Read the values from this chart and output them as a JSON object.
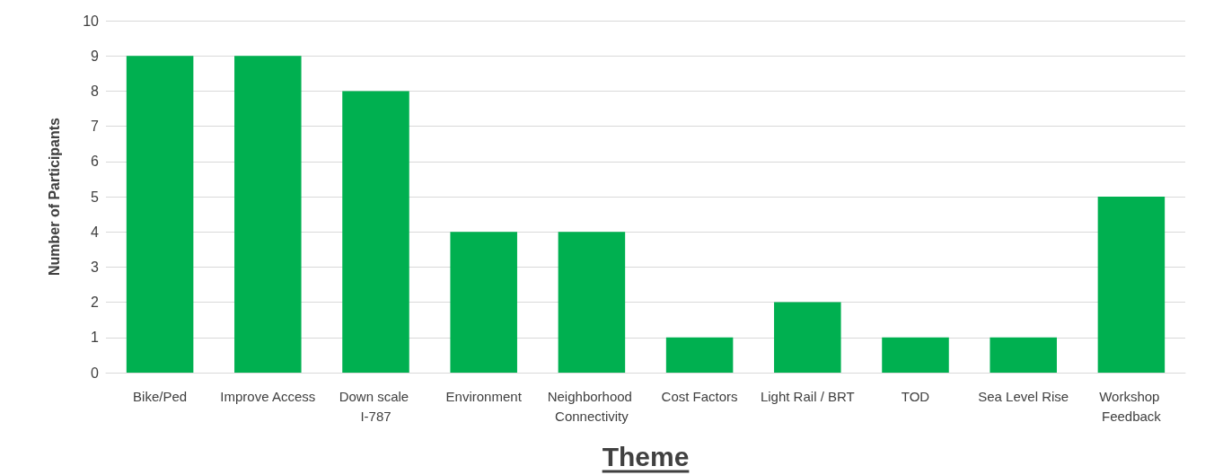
{
  "chart_data": {
    "type": "bar",
    "xlabel": "Theme",
    "ylabel": "Number of Participants",
    "categories": [
      "Bike/Ped",
      "Improve Access",
      "Down scale I-787",
      "Environment",
      "Neighborhood Connectivity",
      "Cost Factors",
      "Light Rail / BRT",
      "TOD",
      "Sea Level Rise",
      "Workshop Feedback"
    ],
    "values": [
      9,
      9,
      8,
      4,
      4,
      1,
      2,
      1,
      1,
      5
    ],
    "color": "#00b050",
    "ylim": [
      0,
      10
    ],
    "yticks": [
      0,
      1,
      2,
      3,
      4,
      5,
      6,
      7,
      8,
      9,
      10
    ],
    "grid": "y"
  }
}
